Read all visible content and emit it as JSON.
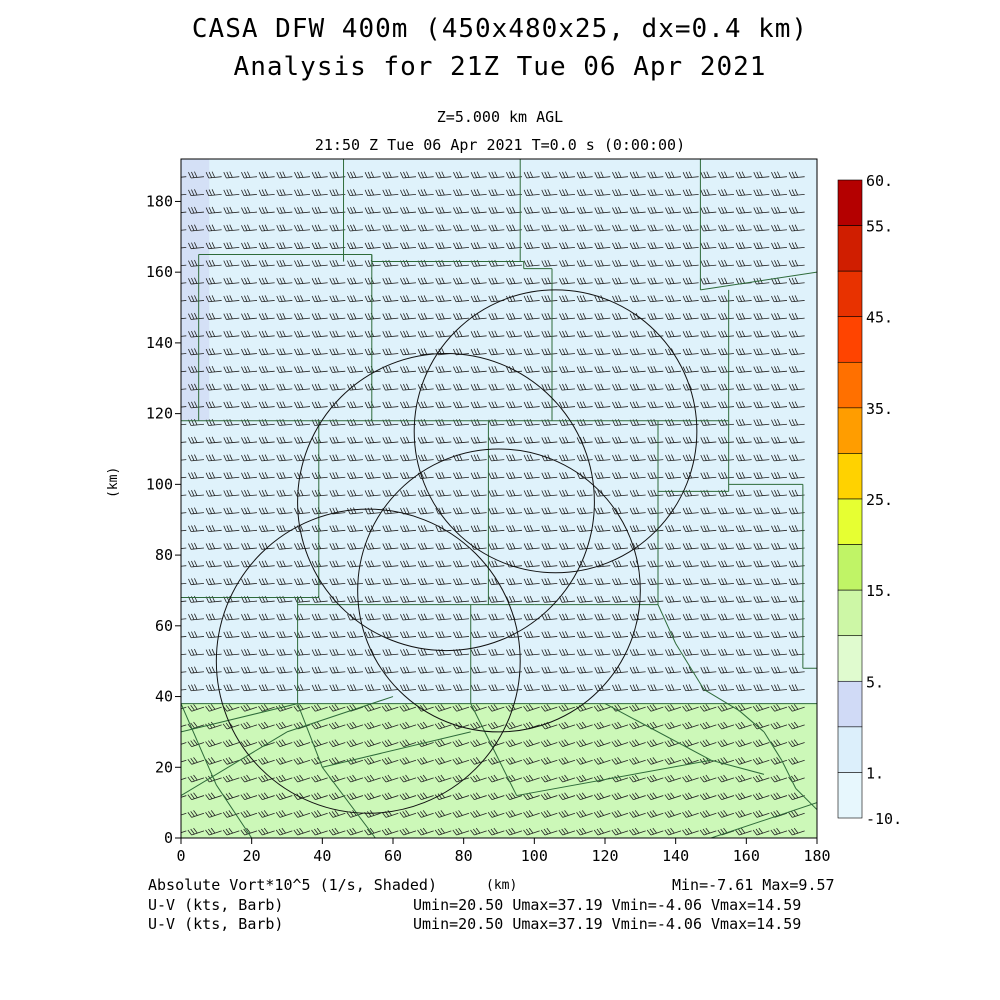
{
  "header": {
    "title_line1": "CASA DFW 400m (450x480x25, dx=0.4 km)",
    "title_line2": "Analysis for 21Z Tue 06 Apr 2021",
    "level": "Z=5.000 km AGL",
    "time": "21:50 Z Tue 06 Apr 2021   T=0.0 s (0:00:00)"
  },
  "footer": {
    "field1": "Absolute Vort*10^5 (1/s, Shaded)",
    "xunit": "(km)",
    "minmax": "Min=-7.61 Max=9.57",
    "field2": "U-V (kts, Barb)",
    "stats2": "Umin=20.50 Umax=37.19 Vmin=-4.06 Vmax=14.59",
    "field3": "U-V (kts, Barb)",
    "stats3": "Umin=20.50 Umax=37.19 Vmin=-4.06 Vmax=14.59"
  },
  "chart_data": {
    "type": "heatmap",
    "xlabel": "",
    "ylabel": "(km)",
    "xlim": [
      0,
      180
    ],
    "ylim": [
      0,
      192
    ],
    "xticks": [
      0,
      20,
      40,
      60,
      80,
      100,
      120,
      140,
      160,
      180
    ],
    "yticks": [
      0,
      20,
      40,
      60,
      80,
      100,
      120,
      140,
      160,
      180
    ],
    "field_regions": [
      {
        "y_range": [
          0,
          38
        ],
        "value": 5,
        "color": "#ccf8b8"
      },
      {
        "y_range": [
          38,
          192
        ],
        "value": 0,
        "color": "#dff2fb"
      },
      {
        "polygon": [
          [
            0,
            118
          ],
          [
            0,
            192
          ],
          [
            8,
            192
          ],
          [
            8,
            118
          ]
        ],
        "value": 1,
        "color": "#d4e0f6"
      }
    ],
    "colorbar": {
      "labels": [
        "60.",
        "55.",
        "45.",
        "35.",
        "25.",
        "15.",
        "5.",
        "1.",
        "-10."
      ],
      "colors": [
        "#b40000",
        "#d01e00",
        "#e83200",
        "#ff4400",
        "#ff7000",
        "#ff9d00",
        "#ffd200",
        "#e6ff32",
        "#c0f466",
        "#cdf7a6",
        "#e0fbcf",
        "#d0daf6",
        "#dceffb",
        "#e7f7fd"
      ]
    },
    "radar_circles": [
      {
        "cx": 106,
        "cy": 115,
        "r": 40
      },
      {
        "cx": 75,
        "cy": 95,
        "r": 42
      },
      {
        "cx": 90,
        "cy": 70,
        "r": 40
      },
      {
        "cx": 53,
        "cy": 50,
        "r": 43
      }
    ],
    "county_lines": [
      [
        [
          0,
          118
        ],
        [
          150,
          118
        ]
      ],
      [
        [
          0,
          118
        ],
        [
          0,
          192
        ]
      ],
      [
        [
          0,
          192
        ],
        [
          180,
          192
        ]
      ],
      [
        [
          5,
          118
        ],
        [
          5,
          165
        ]
      ],
      [
        [
          5,
          165
        ],
        [
          54,
          165
        ]
      ],
      [
        [
          54,
          165
        ],
        [
          54,
          163
        ]
      ],
      [
        [
          54,
          163
        ],
        [
          97,
          163
        ]
      ],
      [
        [
          97,
          163
        ],
        [
          97,
          161
        ]
      ],
      [
        [
          97,
          161
        ],
        [
          105,
          161
        ]
      ],
      [
        [
          105,
          161
        ],
        [
          105,
          118
        ]
      ],
      [
        [
          54,
          165
        ],
        [
          54,
          118
        ]
      ],
      [
        [
          46,
          163
        ],
        [
          46,
          192
        ]
      ],
      [
        [
          96,
          163
        ],
        [
          96,
          192
        ]
      ],
      [
        [
          147,
          192
        ],
        [
          147,
          155
        ]
      ],
      [
        [
          147,
          155
        ],
        [
          180,
          160
        ]
      ],
      [
        [
          155,
          155
        ],
        [
          155,
          118
        ]
      ],
      [
        [
          150,
          118
        ],
        [
          155,
          118
        ]
      ],
      [
        [
          155,
          100
        ],
        [
          176,
          100
        ]
      ],
      [
        [
          176,
          100
        ],
        [
          176,
          48
        ]
      ],
      [
        [
          176,
          48
        ],
        [
          180,
          48
        ]
      ],
      [
        [
          135,
          118
        ],
        [
          135,
          98
        ]
      ],
      [
        [
          135,
          98
        ],
        [
          155,
          98
        ]
      ],
      [
        [
          155,
          98
        ],
        [
          155,
          118
        ]
      ],
      [
        [
          39,
          118
        ],
        [
          39,
          68
        ]
      ],
      [
        [
          39,
          68
        ],
        [
          0,
          68
        ]
      ],
      [
        [
          33,
          68
        ],
        [
          33,
          38
        ]
      ],
      [
        [
          0,
          38
        ],
        [
          180,
          38
        ]
      ],
      [
        [
          33,
          66
        ],
        [
          100,
          66
        ]
      ],
      [
        [
          100,
          66
        ],
        [
          135,
          66
        ]
      ],
      [
        [
          135,
          66
        ],
        [
          135,
          118
        ]
      ],
      [
        [
          87,
          66
        ],
        [
          87,
          118
        ]
      ],
      [
        [
          82,
          66
        ],
        [
          82,
          38
        ]
      ],
      [
        [
          135,
          66
        ],
        [
          140,
          55
        ]
      ],
      [
        [
          140,
          55
        ],
        [
          148,
          42
        ]
      ],
      [
        [
          148,
          42
        ],
        [
          158,
          36
        ]
      ],
      [
        [
          158,
          36
        ],
        [
          165,
          30
        ]
      ],
      [
        [
          165,
          30
        ],
        [
          170,
          22
        ]
      ],
      [
        [
          170,
          22
        ],
        [
          174,
          14
        ]
      ],
      [
        [
          174,
          14
        ],
        [
          180,
          8
        ]
      ],
      [
        [
          0,
          12
        ],
        [
          30,
          30
        ]
      ],
      [
        [
          30,
          30
        ],
        [
          60,
          40
        ]
      ],
      [
        [
          0,
          38
        ],
        [
          10,
          15
        ]
      ],
      [
        [
          10,
          15
        ],
        [
          20,
          0
        ]
      ],
      [
        [
          33,
          38
        ],
        [
          40,
          20
        ]
      ],
      [
        [
          40,
          20
        ],
        [
          55,
          0
        ]
      ],
      [
        [
          82,
          38
        ],
        [
          95,
          12
        ]
      ],
      [
        [
          95,
          12
        ],
        [
          150,
          22
        ]
      ],
      [
        [
          150,
          22
        ],
        [
          165,
          18
        ]
      ],
      [
        [
          120,
          38
        ],
        [
          150,
          22
        ]
      ],
      [
        [
          150,
          0
        ],
        [
          180,
          10
        ]
      ],
      [
        [
          40,
          20
        ],
        [
          82,
          30
        ]
      ],
      [
        [
          0,
          30
        ],
        [
          33,
          38
        ]
      ]
    ],
    "wind_barbs": {
      "regions": [
        {
          "y_range": [
            0,
            38
          ],
          "u_kts": 30,
          "v_kts": 10
        },
        {
          "y_range": [
            38,
            192
          ],
          "u_kts": 30,
          "v_kts": 3
        }
      ],
      "spacing_km": 5
    }
  }
}
